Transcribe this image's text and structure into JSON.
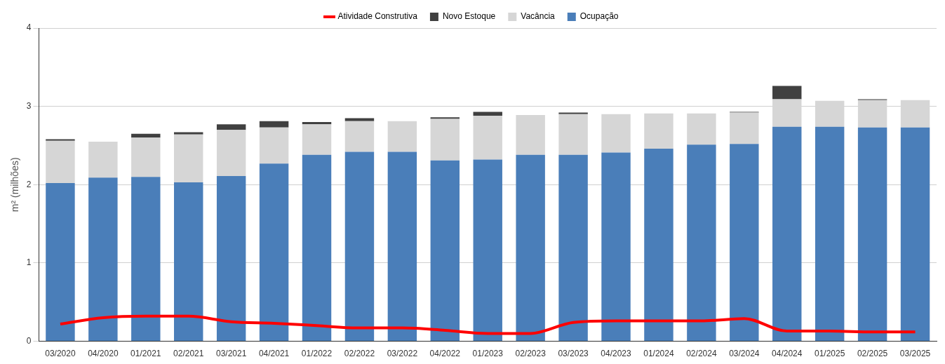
{
  "chart_data": {
    "type": "bar",
    "stacked": true,
    "ylabel": "m² (milhões)",
    "legend": "top",
    "grid": "y",
    "categories": [
      "03/2020",
      "04/2020",
      "01/2021",
      "02/2021",
      "03/2021",
      "04/2021",
      "01/2022",
      "02/2022",
      "03/2022",
      "04/2022",
      "01/2023",
      "02/2023",
      "03/2023",
      "04/2023",
      "01/2024",
      "02/2024",
      "03/2024",
      "04/2024",
      "01/2025",
      "02/2025",
      "03/2025"
    ],
    "ylim": [
      0,
      4
    ],
    "yticks": [
      0,
      1,
      2,
      3,
      4
    ],
    "series": [
      {
        "name": "Ocupação",
        "color": "#4a7eb9",
        "values": [
          2.02,
          2.09,
          2.1,
          2.03,
          2.11,
          2.27,
          2.38,
          2.42,
          2.42,
          2.31,
          2.32,
          2.38,
          2.38,
          2.41,
          2.46,
          2.51,
          2.52,
          2.74,
          2.74,
          2.73,
          2.73
        ]
      },
      {
        "name": "Vacância",
        "color": "#d6d6d6",
        "values": [
          0.54,
          0.46,
          0.5,
          0.61,
          0.59,
          0.46,
          0.39,
          0.39,
          0.39,
          0.53,
          0.56,
          0.51,
          0.52,
          0.49,
          0.45,
          0.4,
          0.4,
          0.35,
          0.33,
          0.35,
          0.35
        ]
      },
      {
        "name": "Novo Estoque",
        "color": "#404040",
        "values": [
          0.02,
          0,
          0.05,
          0.03,
          0.07,
          0.08,
          0.03,
          0.04,
          0,
          0.02,
          0.05,
          0,
          0.02,
          0,
          0,
          0,
          0.01,
          0.17,
          0,
          0.01,
          0
        ]
      },
      {
        "name": "Atividade Construtiva",
        "type": "line",
        "color": "#ff0000",
        "values": [
          0.22,
          0.3,
          0.32,
          0.32,
          0.25,
          0.23,
          0.2,
          0.17,
          0.17,
          0.14,
          0.1,
          0.1,
          0.24,
          0.26,
          0.26,
          0.26,
          0.29,
          0.13,
          0.13,
          0.12,
          0.12
        ]
      }
    ]
  }
}
